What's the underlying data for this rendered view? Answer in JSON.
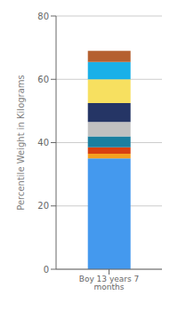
{
  "chart_data": {
    "type": "bar",
    "categories": [
      "Boy 13 years 7 months"
    ],
    "ylabel": "Percentile Weight in Kilograms",
    "ylim": [
      0,
      80
    ],
    "yticks": [
      0,
      20,
      40,
      60,
      80
    ],
    "grid": true,
    "stacked": true,
    "series": [
      {
        "color": "#4499ee",
        "values": [
          35.0
        ]
      },
      {
        "color": "#f5a020",
        "values": [
          1.5
        ]
      },
      {
        "color": "#d94010",
        "values": [
          2.0
        ]
      },
      {
        "color": "#1a7fa0",
        "values": [
          3.5
        ]
      },
      {
        "color": "#c0c0c0",
        "values": [
          4.5
        ]
      },
      {
        "color": "#253565",
        "values": [
          6.0
        ]
      },
      {
        "color": "#f7e060",
        "values": [
          7.5
        ]
      },
      {
        "color": "#1ab0e8",
        "values": [
          5.5
        ]
      },
      {
        "color": "#b56030",
        "values": [
          3.5
        ]
      }
    ]
  }
}
